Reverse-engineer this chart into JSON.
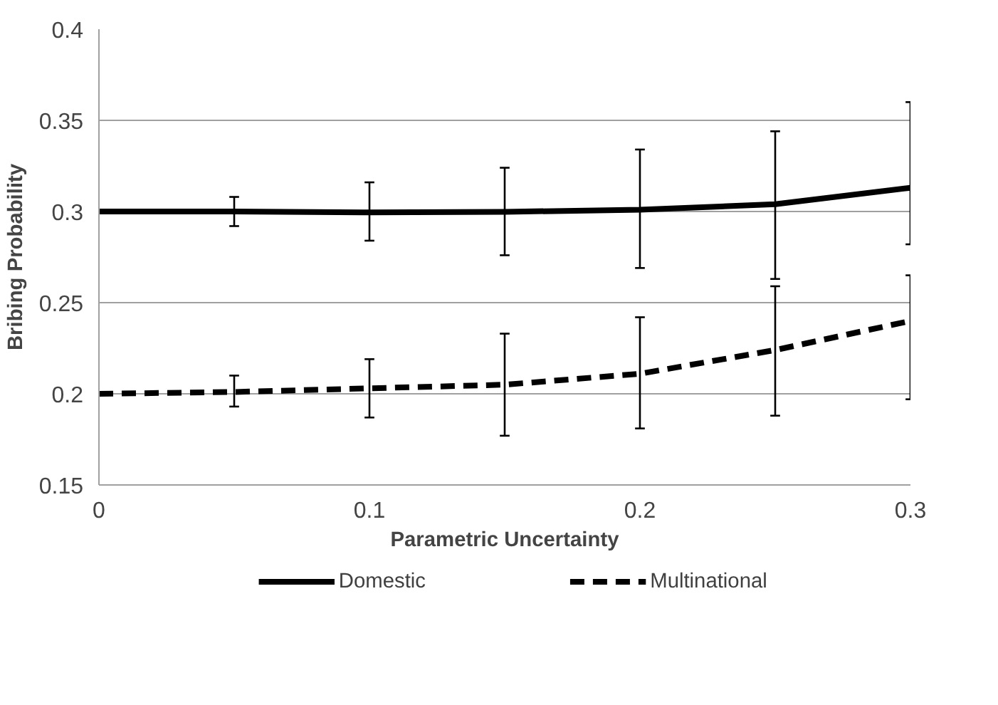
{
  "chart_data": {
    "type": "line",
    "xlabel": "Parametric Uncertainty",
    "ylabel": "Bribing Probability",
    "x": [
      0,
      0.05,
      0.1,
      0.15,
      0.2,
      0.25,
      0.3
    ],
    "series": [
      {
        "name": "Domestic",
        "color": "#000000",
        "line_style": "solid",
        "values": [
          0.3,
          0.3,
          0.2995,
          0.2998,
          0.301,
          0.304,
          0.313
        ],
        "errors": [
          null,
          [
            0.292,
            0.308
          ],
          [
            0.284,
            0.316
          ],
          [
            0.276,
            0.324
          ],
          [
            0.269,
            0.334
          ],
          [
            0.263,
            0.344
          ],
          [
            0.282,
            0.36
          ]
        ]
      },
      {
        "name": "Multinational",
        "color": "#000000",
        "line_style": "dashed",
        "values": [
          0.2,
          0.201,
          0.203,
          0.205,
          0.211,
          0.224,
          0.24
        ],
        "errors": [
          null,
          [
            0.193,
            0.21
          ],
          [
            0.187,
            0.219
          ],
          [
            0.177,
            0.233
          ],
          [
            0.181,
            0.242
          ],
          [
            0.188,
            0.259
          ],
          [
            0.197,
            0.265
          ]
        ]
      }
    ],
    "xlim": [
      0,
      0.3
    ],
    "xticks": [
      0,
      0.1,
      0.2,
      0.3
    ],
    "ylim": [
      0.15,
      0.4
    ],
    "yticks": [
      0.15,
      0.2,
      0.25,
      0.3,
      0.35,
      0.4
    ],
    "grid": "y",
    "legend": "bottom",
    "marker": "none"
  }
}
